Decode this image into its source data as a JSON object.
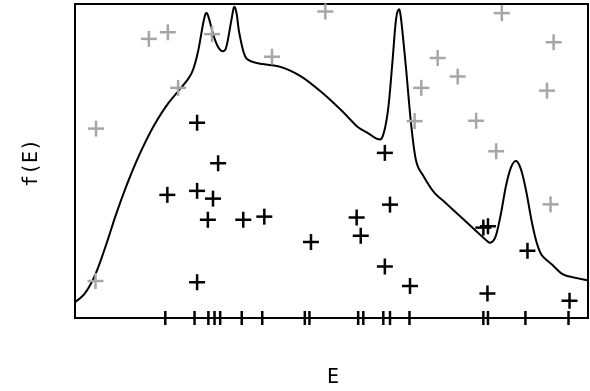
{
  "chart_data": {
    "type": "scatter",
    "title": "",
    "xlabel": "E",
    "ylabel": "f(E)",
    "xlim": [
      0,
      100
    ],
    "ylim": [
      0,
      100
    ],
    "ticks_shown": false,
    "curve": {
      "points": [
        [
          0,
          5
        ],
        [
          2,
          8
        ],
        [
          4,
          14
        ],
        [
          6,
          23
        ],
        [
          8,
          33
        ],
        [
          10,
          42
        ],
        [
          12,
          50
        ],
        [
          14,
          57
        ],
        [
          16,
          63
        ],
        [
          18,
          68
        ],
        [
          20,
          72
        ],
        [
          22,
          76
        ],
        [
          23,
          79
        ],
        [
          24,
          85
        ],
        [
          25,
          94
        ],
        [
          25.5,
          97
        ],
        [
          26,
          96
        ],
        [
          27,
          90
        ],
        [
          28,
          86
        ],
        [
          29,
          85
        ],
        [
          29.6,
          87
        ],
        [
          30.5,
          95
        ],
        [
          31,
          99
        ],
        [
          31.5,
          97
        ],
        [
          32,
          91
        ],
        [
          33,
          84
        ],
        [
          34,
          82
        ],
        [
          36,
          81
        ],
        [
          40,
          80
        ],
        [
          44,
          77
        ],
        [
          48,
          72
        ],
        [
          52,
          66
        ],
        [
          55,
          61
        ],
        [
          57,
          59
        ],
        [
          59,
          57
        ],
        [
          60,
          58
        ],
        [
          61,
          66
        ],
        [
          61.8,
          80
        ],
        [
          62.5,
          94
        ],
        [
          63,
          98
        ],
        [
          63.5,
          96
        ],
        [
          64.5,
          80
        ],
        [
          65.5,
          62
        ],
        [
          66.5,
          50
        ],
        [
          68,
          45
        ],
        [
          70,
          40
        ],
        [
          72,
          37
        ],
        [
          74,
          34
        ],
        [
          76,
          31
        ],
        [
          78,
          28
        ],
        [
          80,
          25
        ],
        [
          81,
          24
        ],
        [
          82,
          26
        ],
        [
          83,
          33
        ],
        [
          84,
          42
        ],
        [
          85,
          48
        ],
        [
          86,
          50
        ],
        [
          87,
          47
        ],
        [
          88,
          40
        ],
        [
          89,
          31
        ],
        [
          90,
          24
        ],
        [
          91,
          20
        ],
        [
          93,
          17
        ],
        [
          95,
          14
        ],
        [
          97,
          13
        ],
        [
          100,
          12
        ]
      ]
    },
    "series": [
      {
        "color": "#000000",
        "points": [
          [
            23.8,
            62.2
          ],
          [
            18.0,
            39.2
          ],
          [
            23.8,
            40.5
          ],
          [
            27.9,
            49.3
          ],
          [
            26.9,
            38.0
          ],
          [
            25.9,
            31.3
          ],
          [
            32.8,
            31.3
          ],
          [
            36.9,
            32.3
          ],
          [
            46.0,
            24.2
          ],
          [
            54.9,
            32.0
          ],
          [
            55.7,
            26.2
          ],
          [
            23.8,
            11.4
          ],
          [
            60.4,
            52.6
          ],
          [
            61.4,
            36.1
          ],
          [
            60.4,
            16.4
          ],
          [
            65.3,
            10.2
          ],
          [
            79.6,
            28.8
          ],
          [
            80.5,
            29.2
          ],
          [
            88.2,
            21.4
          ],
          [
            80.4,
            7.8
          ],
          [
            96.4,
            5.5
          ]
        ]
      },
      {
        "color": "#a6a6a6",
        "points": [
          [
            4.1,
            60.3
          ],
          [
            14.4,
            88.9
          ],
          [
            18.1,
            91.0
          ],
          [
            20.1,
            73.3
          ],
          [
            26.7,
            90.4
          ],
          [
            38.4,
            83.2
          ],
          [
            48.8,
            97.6
          ],
          [
            66.2,
            62.7
          ],
          [
            67.5,
            73.3
          ],
          [
            70.7,
            82.8
          ],
          [
            74.6,
            76.9
          ],
          [
            78.2,
            62.8
          ],
          [
            82.1,
            53.1
          ],
          [
            83.2,
            97.1
          ],
          [
            92.0,
            72.4
          ],
          [
            92.7,
            36.2
          ],
          [
            93.3,
            87.8
          ],
          [
            4.0,
            11.8
          ]
        ]
      }
    ],
    "rug": [
      17.6,
      23.3,
      26.0,
      27.2,
      28.3,
      32.5,
      36.5,
      44.8,
      45.7,
      55.2,
      56.2,
      60.1,
      61.4,
      65.2,
      79.6,
      80.5,
      87.8,
      96.2
    ]
  }
}
